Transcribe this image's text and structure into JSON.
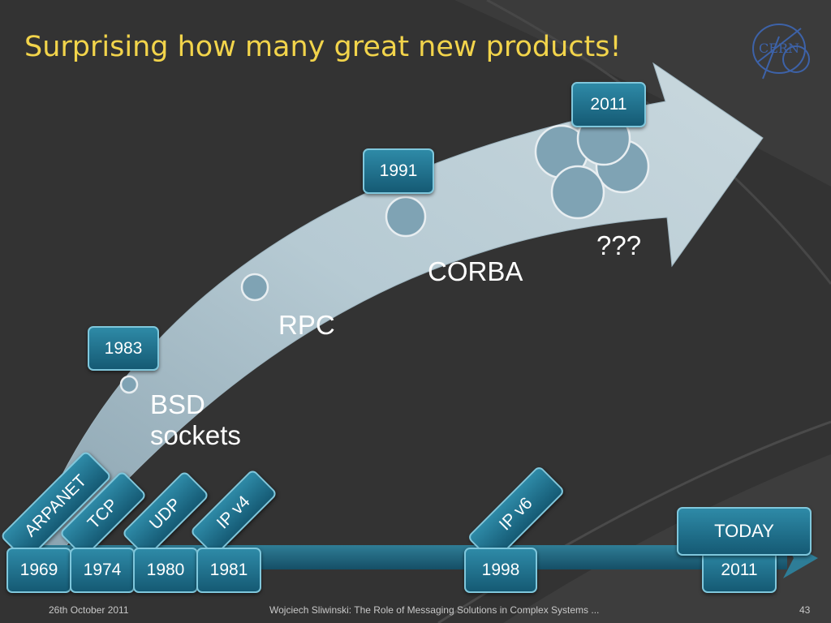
{
  "slide": {
    "title": "Surprising how many great new products!",
    "logo_text": "CERN"
  },
  "arrow_labels": {
    "bsd_line1": "BSD",
    "bsd_line2": "sockets",
    "rpc": "RPC",
    "corba": "CORBA",
    "unknown": "???"
  },
  "year_tags": {
    "y1983": "1983",
    "y1991": "1991",
    "y2011": "2011"
  },
  "timeline": {
    "years": [
      "1969",
      "1974",
      "1980",
      "1981",
      "1998",
      "2011"
    ],
    "protocols": {
      "arpanet": "ARPANET",
      "tcp": "TCP",
      "udp": "UDP",
      "ipv4": "IP v4",
      "ipv6": "IP v6"
    },
    "today": "TODAY"
  },
  "footer": {
    "date": "26th October 2011",
    "center": "Wojciech Sliwinski: The Role of Messaging Solutions in Complex Systems ...",
    "page": "43"
  }
}
